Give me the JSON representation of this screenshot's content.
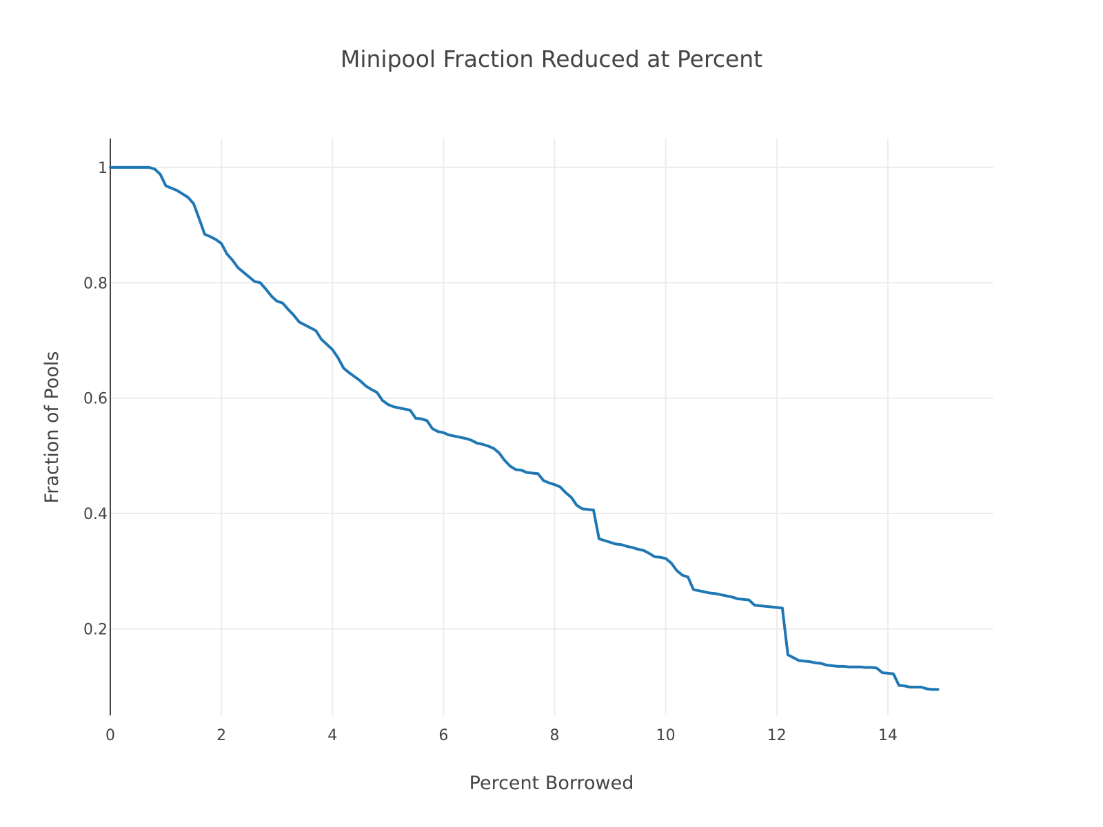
{
  "chart_data": {
    "type": "line",
    "title": "Minipool Fraction Reduced at Percent",
    "xlabel": "Percent Borrowed",
    "ylabel": "Fraction of Pools",
    "xlim": [
      0,
      15.9
    ],
    "ylim": [
      0.05,
      1.05
    ],
    "x_ticks": [
      0,
      2,
      4,
      6,
      8,
      10,
      12,
      14
    ],
    "x_tick_labels": [
      "0",
      "2",
      "4",
      "6",
      "8",
      "10",
      "12",
      "14"
    ],
    "y_ticks": [
      0.2,
      0.4,
      0.6,
      0.8,
      1
    ],
    "y_tick_labels": [
      "0.2",
      "0.4",
      "0.6",
      "0.8",
      "1"
    ],
    "grid": true,
    "series": [
      {
        "color": "#1f77b4",
        "x": [
          0,
          0.7,
          0.8,
          0.9,
          1.0,
          1.2,
          1.3,
          1.4,
          1.5,
          1.6,
          1.7,
          1.8,
          1.9,
          2.0,
          2.1,
          2.2,
          2.3,
          2.4,
          2.5,
          2.6,
          2.7,
          2.8,
          2.9,
          3.0,
          3.1,
          3.2,
          3.3,
          3.4,
          3.5,
          3.6,
          3.7,
          3.8,
          3.9,
          4.0,
          4.1,
          4.2,
          4.3,
          4.4,
          4.5,
          4.6,
          4.7,
          4.8,
          4.9,
          5.0,
          5.1,
          5.2,
          5.3,
          5.4,
          5.5,
          5.6,
          5.7,
          5.8,
          5.9,
          6.0,
          6.1,
          6.2,
          6.3,
          6.4,
          6.5,
          6.6,
          6.7,
          6.8,
          6.9,
          7.0,
          7.1,
          7.2,
          7.3,
          7.4,
          7.5,
          7.6,
          7.7,
          7.8,
          7.9,
          8.0,
          8.1,
          8.2,
          8.3,
          8.4,
          8.5,
          8.6,
          8.7,
          8.8,
          8.9,
          9.0,
          9.1,
          9.2,
          9.3,
          9.4,
          9.5,
          9.6,
          9.7,
          9.8,
          9.9,
          10.0,
          10.1,
          10.2,
          10.3,
          10.4,
          10.5,
          10.6,
          10.7,
          10.8,
          10.9,
          11.0,
          11.1,
          11.2,
          11.3,
          11.4,
          11.5,
          11.6,
          11.7,
          11.8,
          11.9,
          12.0,
          12.1,
          12.2,
          12.3,
          12.4,
          12.5,
          12.6,
          12.7,
          12.8,
          12.9,
          13.0,
          13.1,
          13.2,
          13.3,
          13.4,
          13.5,
          13.6,
          13.7,
          13.8,
          13.9,
          14.0,
          14.1,
          14.2,
          14.3,
          14.4,
          14.5,
          14.6,
          14.7,
          14.8,
          14.9
        ],
        "y": [
          1.0,
          1.0,
          0.997,
          0.988,
          0.968,
          0.96,
          0.954,
          0.948,
          0.937,
          0.911,
          0.884,
          0.88,
          0.875,
          0.868,
          0.85,
          0.839,
          0.826,
          0.818,
          0.81,
          0.802,
          0.8,
          0.789,
          0.777,
          0.768,
          0.765,
          0.754,
          0.744,
          0.732,
          0.727,
          0.722,
          0.717,
          0.702,
          0.693,
          0.684,
          0.67,
          0.652,
          0.644,
          0.637,
          0.63,
          0.621,
          0.615,
          0.61,
          0.596,
          0.589,
          0.585,
          0.583,
          0.581,
          0.579,
          0.565,
          0.564,
          0.561,
          0.547,
          0.542,
          0.54,
          0.536,
          0.534,
          0.532,
          0.53,
          0.527,
          0.522,
          0.52,
          0.517,
          0.513,
          0.505,
          0.492,
          0.482,
          0.476,
          0.475,
          0.471,
          0.47,
          0.469,
          0.457,
          0.453,
          0.45,
          0.446,
          0.436,
          0.428,
          0.414,
          0.408,
          0.407,
          0.406,
          0.356,
          0.353,
          0.35,
          0.347,
          0.346,
          0.343,
          0.341,
          0.338,
          0.336,
          0.331,
          0.325,
          0.324,
          0.322,
          0.314,
          0.301,
          0.293,
          0.29,
          0.268,
          0.266,
          0.264,
          0.262,
          0.261,
          0.259,
          0.257,
          0.255,
          0.252,
          0.251,
          0.25,
          0.241,
          0.24,
          0.239,
          0.238,
          0.237,
          0.236,
          0.155,
          0.15,
          0.145,
          0.144,
          0.143,
          0.141,
          0.14,
          0.137,
          0.136,
          0.135,
          0.135,
          0.134,
          0.134,
          0.134,
          0.133,
          0.133,
          0.132,
          0.124,
          0.123,
          0.122,
          0.102,
          0.101,
          0.099,
          0.099,
          0.099,
          0.096,
          0.095,
          0.095
        ]
      }
    ]
  }
}
